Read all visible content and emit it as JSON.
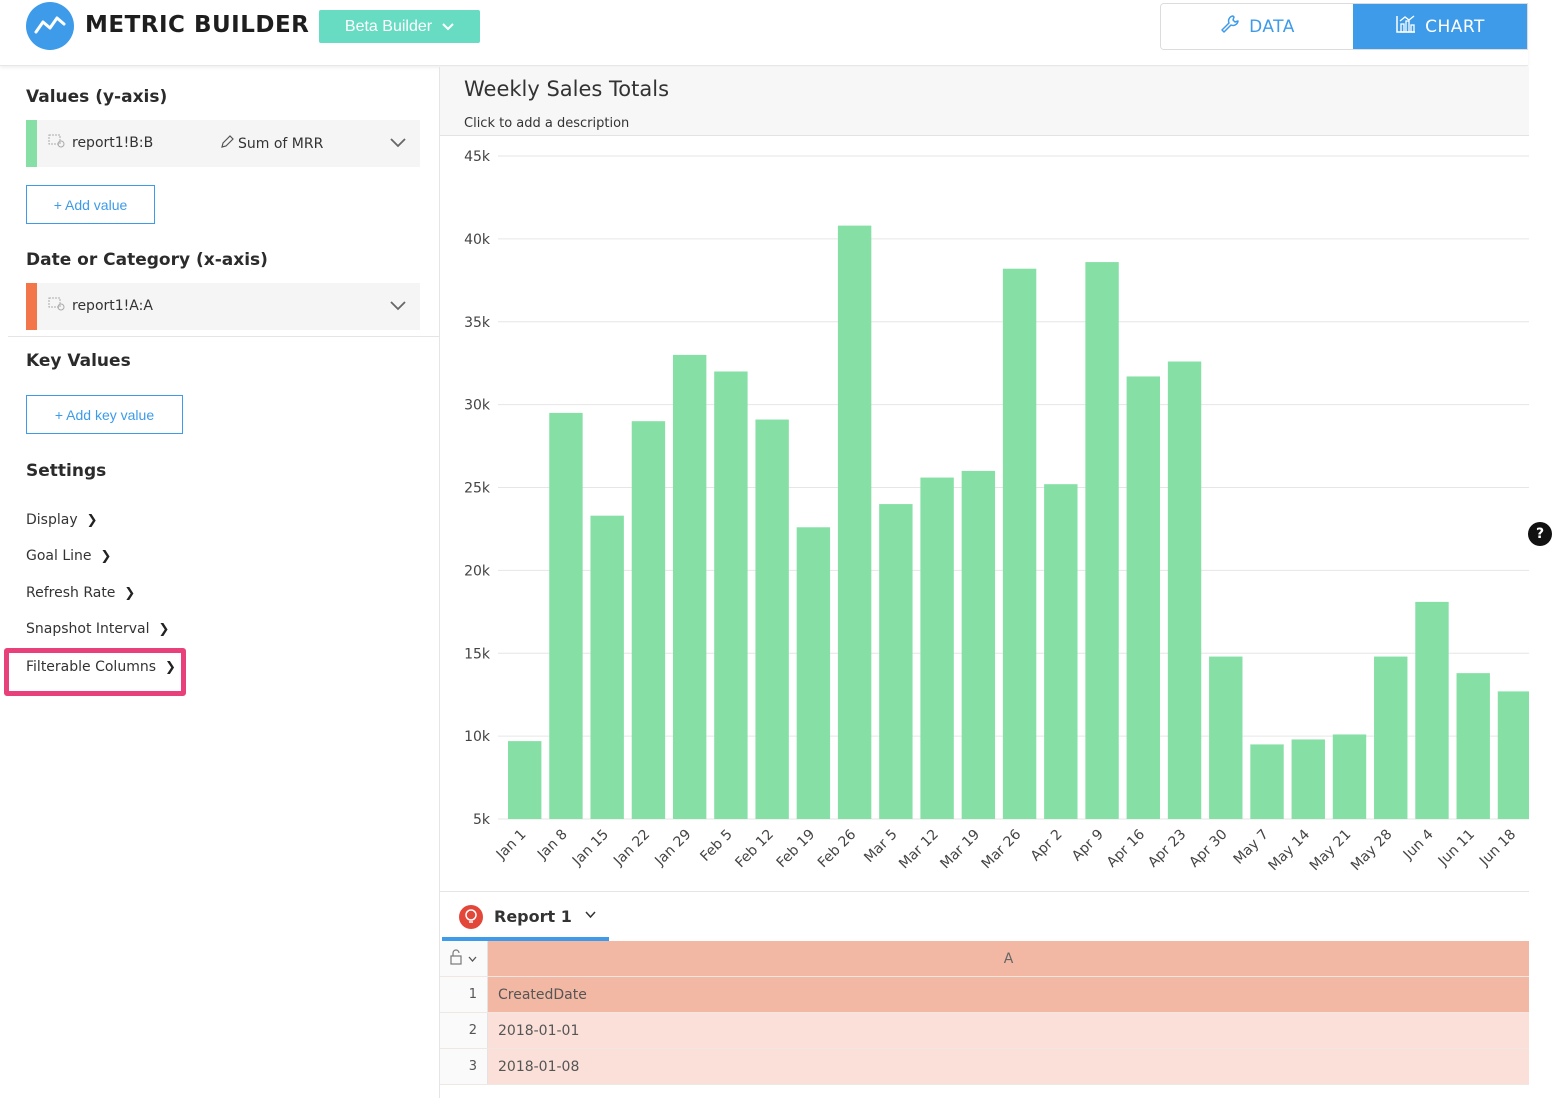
{
  "header": {
    "app_title": "METRIC BUILDER",
    "builder_select": "Beta Builder",
    "data_tab": "DATA",
    "chart_tab": "CHART",
    "accent": "#3d9be9",
    "beta_color": "#67dcc3"
  },
  "left_panel": {
    "values_title": "Values (y-axis)",
    "value_field": {
      "ref": "report1!B:B",
      "aggregation": "Sum of MRR",
      "color": "#86e0a5"
    },
    "add_value_label": "+ Add value",
    "category_title": "Date or Category (x-axis)",
    "category_field": {
      "ref": "report1!A:A",
      "color": "#f2764a"
    },
    "key_values_title": "Key Values",
    "add_key_value_label": "+ Add key value",
    "settings_title": "Settings",
    "settings_items": [
      "Display",
      "Goal Line",
      "Refresh Rate",
      "Snapshot Interval",
      "Filterable Columns"
    ],
    "highlight_color": "#e8407a"
  },
  "chart": {
    "title": "Weekly Sales Totals",
    "description": "Click to add a description"
  },
  "chart_data": {
    "type": "bar",
    "categories": [
      "Jan 1",
      "Jan 8",
      "Jan 15",
      "Jan 22",
      "Jan 29",
      "Feb 5",
      "Feb 12",
      "Feb 19",
      "Feb 26",
      "Mar 5",
      "Mar 12",
      "Mar 19",
      "Mar 26",
      "Apr 2",
      "Apr 9",
      "Apr 16",
      "Apr 23",
      "Apr 30",
      "May 7",
      "May 14",
      "May 21",
      "May 28",
      "Jun 4",
      "Jun 11",
      "Jun 18"
    ],
    "values": [
      9700,
      29500,
      23300,
      29000,
      33000,
      32000,
      29100,
      22600,
      40800,
      24000,
      25600,
      26000,
      38200,
      25200,
      38600,
      31700,
      32600,
      14800,
      9500,
      9800,
      10100,
      14800,
      18100,
      13800,
      12700
    ],
    "yticks": [
      "5k",
      "10k",
      "15k",
      "20k",
      "25k",
      "30k",
      "35k",
      "40k",
      "45k"
    ],
    "ylim": [
      5000,
      45000
    ],
    "grid": true,
    "color": "#86e0a5"
  },
  "report": {
    "tab_label": "Report 1",
    "column_letter": "A",
    "rows": [
      {
        "num": "1",
        "value": "CreatedDate"
      },
      {
        "num": "2",
        "value": "2018-01-01"
      },
      {
        "num": "3",
        "value": "2018-01-08"
      }
    ]
  }
}
